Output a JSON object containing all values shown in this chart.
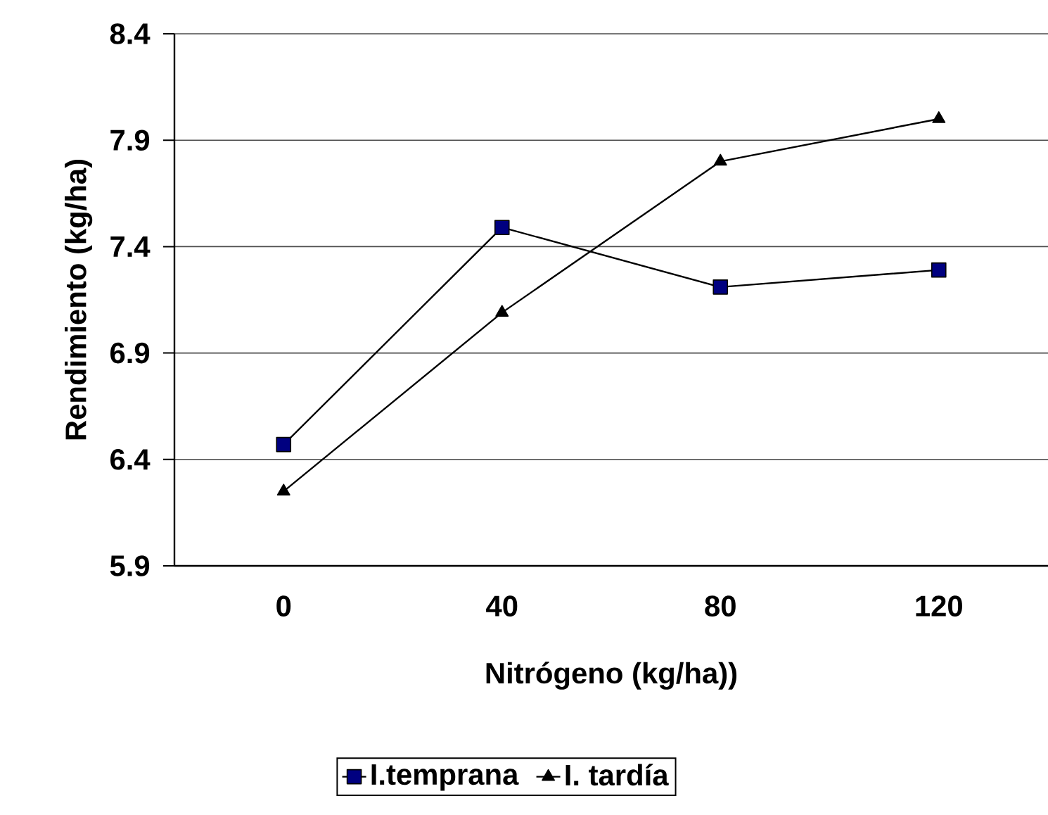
{
  "chart_data": {
    "type": "line",
    "xlabel": "Nitrógeno (kg/ha))",
    "ylabel": "Rendimiento (kg/ha)",
    "categories": [
      "0",
      "40",
      "80",
      "120"
    ],
    "series": [
      {
        "name": "I.temprana",
        "color": "#000080",
        "marker": "square",
        "values": [
          6.47,
          7.49,
          7.21,
          7.29
        ]
      },
      {
        "name": "I. tardía",
        "color": "#000000",
        "marker": "triangle",
        "values": [
          6.25,
          7.09,
          7.8,
          8.0
        ]
      }
    ],
    "ylim": [
      5.9,
      8.4
    ],
    "yticks": [
      5.9,
      6.4,
      6.9,
      7.4,
      7.9,
      8.4
    ],
    "grid": "y",
    "legend": "bottom",
    "line_style": "solid"
  }
}
